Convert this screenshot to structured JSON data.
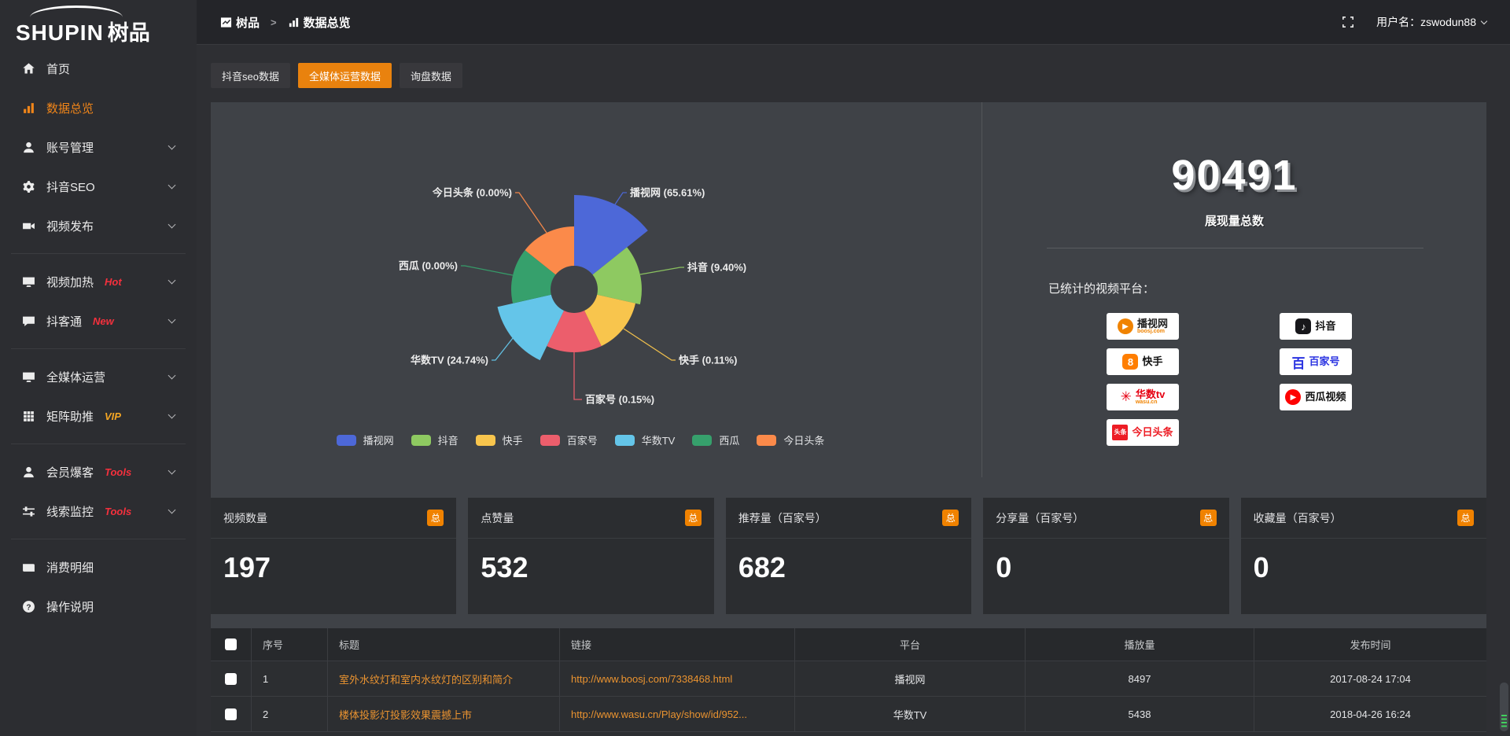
{
  "app": {
    "logo_en": "SHUPIN",
    "logo_cn": "树品",
    "user_label": "用户名：zswodun88"
  },
  "breadcrumb": {
    "root": "树品",
    "sep": ">",
    "current": "数据总览"
  },
  "sidebar": {
    "items": [
      {
        "icon": "home",
        "label": "首页"
      },
      {
        "icon": "bar-chart",
        "label": "数据总览",
        "active": true
      },
      {
        "icon": "user",
        "label": "账号管理",
        "chevron": true
      },
      {
        "icon": "gear",
        "label": "抖音SEO",
        "chevron": true
      },
      {
        "icon": "video-camera",
        "label": "视频发布",
        "chevron": true,
        "divider_after": true
      },
      {
        "icon": "monitor",
        "label": "视频加热",
        "badge": "Hot",
        "badge_color": "#f5303d",
        "chevron": true
      },
      {
        "icon": "chat",
        "label": "抖客通",
        "badge": "New",
        "badge_color": "#f5303d",
        "chevron": true,
        "divider_after": true
      },
      {
        "icon": "monitor",
        "label": "全媒体运营",
        "chevron": true
      },
      {
        "icon": "grid",
        "label": "矩阵助推",
        "badge": "VIP",
        "badge_color": "#f5a623",
        "chevron": true,
        "divider_after": true
      },
      {
        "icon": "user",
        "label": "会员爆客",
        "badge": "Tools",
        "badge_color": "#f5303d",
        "chevron": true
      },
      {
        "icon": "sliders",
        "label": "线索监控",
        "badge": "Tools",
        "badge_color": "#f5303d",
        "chevron": true,
        "divider_after": true
      },
      {
        "icon": "wallet",
        "label": "消费明细"
      },
      {
        "icon": "question-circle",
        "label": "操作说明"
      }
    ]
  },
  "tabs": [
    {
      "label": "抖音seo数据"
    },
    {
      "label": "全媒体运营数据",
      "active": true
    },
    {
      "label": "询盘数据"
    }
  ],
  "chart_data": {
    "type": "pie",
    "style": "nightingale-rose",
    "equal_angle": true,
    "start_angle_deg": -90,
    "legend_position": "bottom",
    "label_format": "{name} ({value}%)",
    "series": [
      {
        "name": "播视网",
        "value": 65.61,
        "color": "#4d68d8"
      },
      {
        "name": "抖音",
        "value": 9.4,
        "color": "#8ec961"
      },
      {
        "name": "快手",
        "value": 0.11,
        "color": "#f8c54d"
      },
      {
        "name": "百家号",
        "value": 0.15,
        "color": "#ec5e6c"
      },
      {
        "name": "华数TV",
        "value": 24.74,
        "color": "#64c5e9"
      },
      {
        "name": "西瓜",
        "value": 0.0,
        "color": "#36a06c"
      },
      {
        "name": "今日头条",
        "value": 0.0,
        "color": "#fb8a4a"
      }
    ]
  },
  "summary": {
    "total_value": "90491",
    "total_label": "展现量总数",
    "platforms_label": "已统计的视频平台：",
    "platforms": [
      {
        "icon": "play",
        "shape": "circle",
        "icon_bg": "#f08300",
        "name": "播视网",
        "name_color": "#222222",
        "sub": "boosj.com",
        "sub_color": "#f08300"
      },
      {
        "icon": "8",
        "shape": "rounded",
        "icon_bg": "#ff7e00",
        "name": "快手",
        "name_color": "#111111"
      },
      {
        "icon": "✳",
        "shape": "plain",
        "icon_bg": "#e60012",
        "name": "华数tv",
        "name_color": "#e60012",
        "sub": "wasu.cn",
        "sub_color": "#f08300"
      },
      {
        "icon": "头条",
        "shape": "square",
        "icon_bg": "#ed1c24",
        "name": "今日头条",
        "name_color": "#ed1c24"
      },
      {
        "icon": "♪",
        "shape": "rounded",
        "icon_bg": "#17171b",
        "name": "抖音",
        "name_color": "#111111"
      },
      {
        "icon": "百",
        "shape": "plain",
        "icon_bg": "#2932e1",
        "name": "百家号",
        "name_color": "#2932e1"
      },
      {
        "icon": "play",
        "shape": "circle",
        "icon_bg": "#fe0302",
        "name": "西瓜视频",
        "name_color": "#111111"
      }
    ]
  },
  "cards": [
    {
      "label": "视频数量",
      "badge": "总",
      "value": "197"
    },
    {
      "label": "点赞量",
      "badge": "总",
      "value": "532"
    },
    {
      "label": "推荐量（百家号）",
      "badge": "总",
      "value": "682"
    },
    {
      "label": "分享量（百家号）",
      "badge": "总",
      "value": "0"
    },
    {
      "label": "收藏量（百家号）",
      "badge": "总",
      "value": "0"
    }
  ],
  "table": {
    "headers": [
      "序号",
      "标题",
      "链接",
      "平台",
      "播放量",
      "发布时间"
    ],
    "rows": [
      {
        "no": "1",
        "title": "室外水纹灯和室内水纹灯的区别和简介",
        "link": "http://www.boosj.com/7338468.html",
        "platform": "播视网",
        "plays": "8497",
        "time": "2017-08-24 17:04"
      },
      {
        "no": "2",
        "title": "楼体投影灯投影效果震撼上市",
        "link": "http://www.wasu.cn/Play/show/id/952...",
        "platform": "华数TV",
        "plays": "5438",
        "time": "2018-04-26 16:24"
      }
    ]
  }
}
